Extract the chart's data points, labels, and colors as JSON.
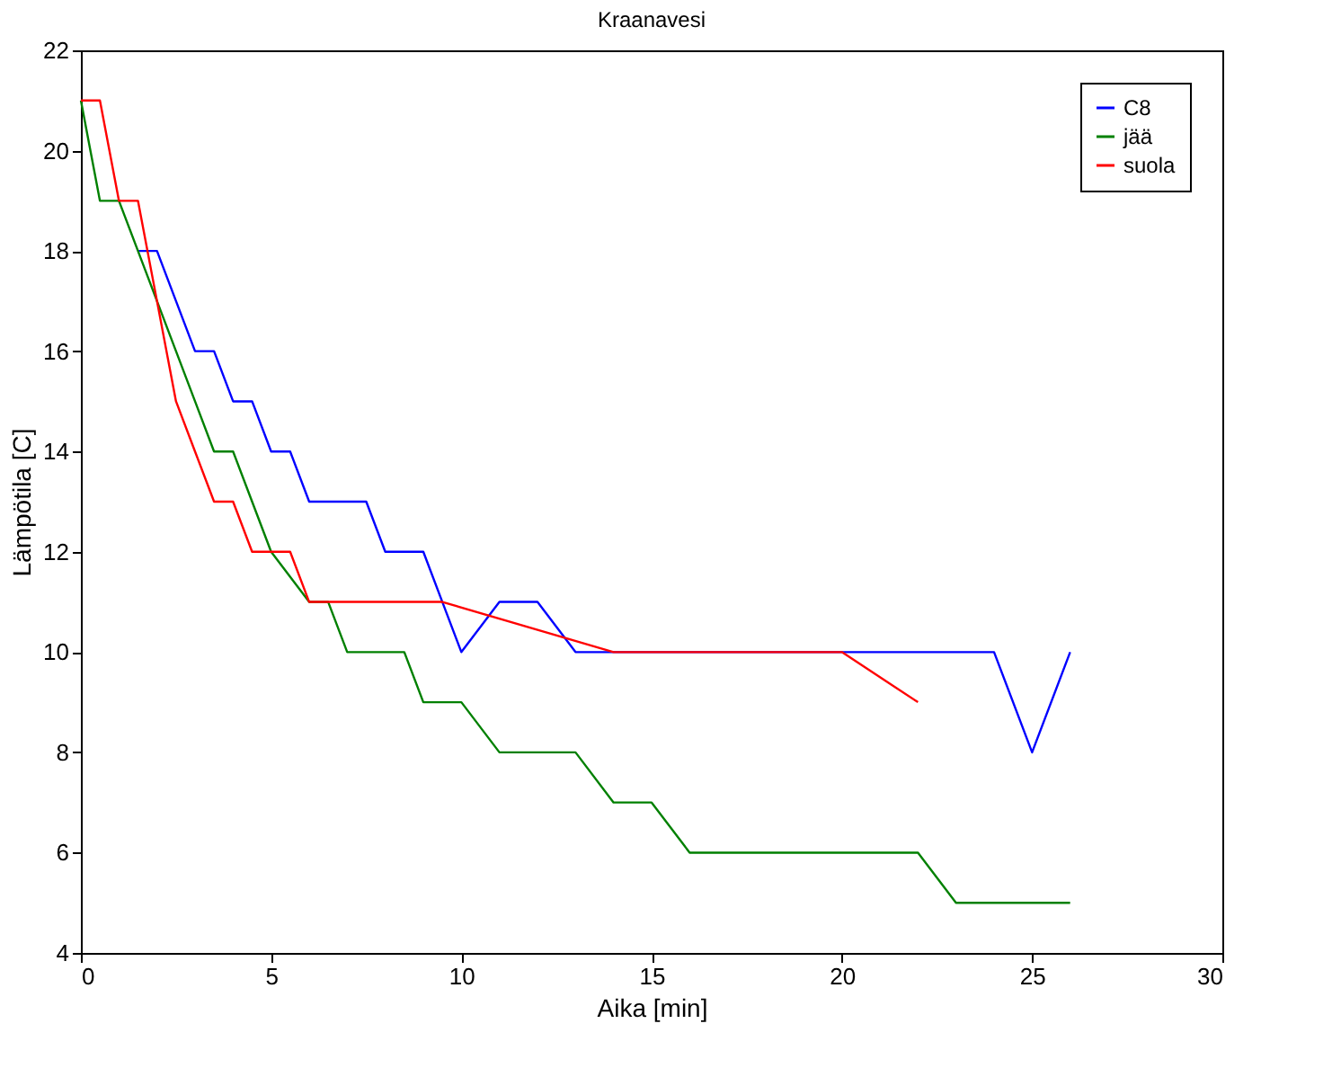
{
  "chart_data": {
    "type": "line",
    "title": "Kraanavesi",
    "xlabel": "Aika [min]",
    "ylabel": "Lämpötila [C]",
    "xlim": [
      0,
      30
    ],
    "xticks": [
      0,
      5,
      10,
      15,
      20,
      25,
      30
    ],
    "ylim": [
      4,
      22
    ],
    "yticks": [
      4,
      6,
      8,
      10,
      12,
      14,
      16,
      18,
      20,
      22
    ],
    "grid": false,
    "legend": "top right",
    "marker": "none",
    "line_style": "solid",
    "series": [
      {
        "name": "C8",
        "color": "#0000ff",
        "x": [
          1.5,
          2,
          2.5,
          3,
          3.5,
          4,
          4.5,
          5,
          5.5,
          6,
          6.5,
          7,
          7.5,
          8,
          8.5,
          9,
          9.5,
          10,
          11,
          12,
          13,
          14,
          20,
          21,
          22,
          23,
          24,
          25,
          26
        ],
        "values": [
          18,
          18,
          17,
          16,
          16,
          15,
          15,
          14,
          14,
          13,
          13,
          13,
          13,
          12,
          12,
          12,
          11,
          10,
          11,
          11,
          10,
          10,
          10,
          10,
          10,
          10,
          10,
          8,
          10
        ]
      },
      {
        "name": "jää",
        "color": "#008000",
        "x": [
          0,
          0.5,
          1,
          1.5,
          2,
          2.5,
          3,
          3.5,
          4,
          4.5,
          5,
          6,
          6.5,
          7,
          8.5,
          9,
          10,
          11,
          13,
          14,
          15,
          16,
          22,
          23,
          26
        ],
        "values": [
          21,
          19,
          19,
          18,
          17,
          16,
          15,
          14,
          14,
          13,
          12,
          11,
          11,
          10,
          10,
          9,
          9,
          8,
          8,
          7,
          7,
          6,
          6,
          5,
          5
        ]
      },
      {
        "name": "suola",
        "color": "#ff0000",
        "x": [
          0,
          0.5,
          1,
          1.5,
          2,
          2.5,
          3,
          3.5,
          4,
          4.5,
          5,
          5.5,
          6,
          9.5,
          14,
          20,
          22
        ],
        "values": [
          21,
          21,
          19,
          19,
          17,
          15,
          14,
          13,
          13,
          12,
          12,
          12,
          11,
          11,
          10,
          10,
          9
        ]
      }
    ]
  }
}
